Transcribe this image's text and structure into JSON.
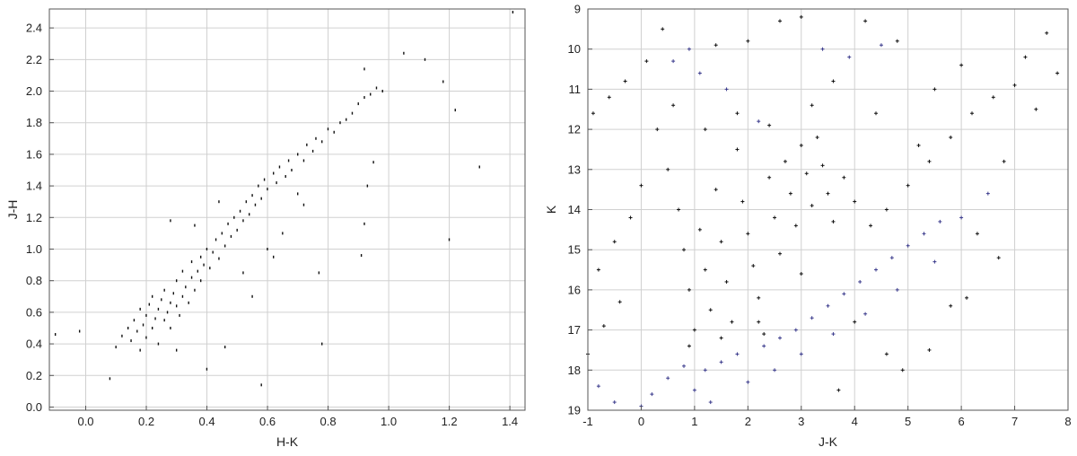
{
  "chart_data": [
    {
      "type": "scatter",
      "title": "",
      "xlabel": "H-K",
      "ylabel": "J-H",
      "xlim": [
        -0.12,
        1.45
      ],
      "ylim": [
        -0.02,
        2.52
      ],
      "xticks": [
        0.0,
        0.2,
        0.4,
        0.6,
        0.8,
        1.0,
        1.2,
        1.4
      ],
      "xtick_labels": [
        "0.0",
        "0.2",
        "0.4",
        "0.6",
        "0.8",
        "1.0",
        "1.2",
        "1.4"
      ],
      "yticks": [
        0.0,
        0.2,
        0.4,
        0.6,
        0.8,
        1.0,
        1.2,
        1.4,
        1.6,
        1.8,
        2.0,
        2.2,
        2.4
      ],
      "ytick_labels": [
        "0.0",
        "0.2",
        "0.4",
        "0.6",
        "0.8",
        "1.0",
        "1.2",
        "1.4",
        "1.6",
        "1.8",
        "2.0",
        "2.2",
        "2.4"
      ],
      "grid": true,
      "series": [
        {
          "marker": "dot",
          "color": "#111111",
          "points": [
            [
              0.1,
              0.38
            ],
            [
              0.12,
              0.45
            ],
            [
              0.14,
              0.5
            ],
            [
              0.15,
              0.42
            ],
            [
              0.16,
              0.55
            ],
            [
              0.17,
              0.48
            ],
            [
              0.18,
              0.62
            ],
            [
              0.18,
              0.36
            ],
            [
              0.19,
              0.52
            ],
            [
              0.2,
              0.58
            ],
            [
              0.2,
              0.44
            ],
            [
              0.21,
              0.65
            ],
            [
              0.22,
              0.5
            ],
            [
              0.22,
              0.7
            ],
            [
              0.23,
              0.56
            ],
            [
              0.24,
              0.62
            ],
            [
              0.24,
              0.4
            ],
            [
              0.25,
              0.68
            ],
            [
              0.26,
              0.55
            ],
            [
              0.26,
              0.74
            ],
            [
              0.27,
              0.6
            ],
            [
              0.28,
              0.66
            ],
            [
              0.28,
              0.5
            ],
            [
              0.29,
              0.72
            ],
            [
              0.3,
              0.64
            ],
            [
              0.3,
              0.8
            ],
            [
              0.31,
              0.58
            ],
            [
              0.32,
              0.7
            ],
            [
              0.32,
              0.86
            ],
            [
              0.33,
              0.76
            ],
            [
              0.34,
              0.66
            ],
            [
              0.35,
              0.82
            ],
            [
              0.35,
              0.92
            ],
            [
              0.36,
              0.74
            ],
            [
              0.37,
              0.86
            ],
            [
              0.38,
              0.95
            ],
            [
              0.38,
              0.8
            ],
            [
              0.39,
              0.9
            ],
            [
              0.4,
              1.0
            ],
            [
              0.41,
              0.88
            ],
            [
              0.42,
              0.98
            ],
            [
              0.43,
              1.06
            ],
            [
              0.44,
              0.94
            ],
            [
              0.45,
              1.1
            ],
            [
              0.46,
              1.02
            ],
            [
              0.47,
              1.16
            ],
            [
              0.48,
              1.08
            ],
            [
              0.49,
              1.2
            ],
            [
              0.5,
              1.12
            ],
            [
              0.51,
              1.24
            ],
            [
              0.52,
              1.18
            ],
            [
              0.53,
              1.3
            ],
            [
              0.54,
              1.22
            ],
            [
              0.55,
              1.34
            ],
            [
              0.56,
              1.28
            ],
            [
              0.57,
              1.4
            ],
            [
              0.58,
              1.32
            ],
            [
              0.59,
              1.44
            ],
            [
              0.6,
              1.38
            ],
            [
              0.62,
              1.48
            ],
            [
              0.63,
              1.42
            ],
            [
              0.64,
              1.52
            ],
            [
              0.66,
              1.46
            ],
            [
              0.67,
              1.56
            ],
            [
              0.68,
              1.5
            ],
            [
              0.7,
              1.6
            ],
            [
              0.72,
              1.56
            ],
            [
              0.73,
              1.66
            ],
            [
              0.75,
              1.62
            ],
            [
              0.76,
              1.7
            ],
            [
              0.78,
              1.68
            ],
            [
              0.8,
              1.76
            ],
            [
              0.82,
              1.74
            ],
            [
              0.84,
              1.8
            ],
            [
              0.86,
              1.82
            ],
            [
              0.88,
              1.86
            ],
            [
              0.9,
              1.92
            ],
            [
              0.92,
              1.96
            ],
            [
              0.94,
              1.98
            ],
            [
              0.96,
              2.02
            ],
            [
              0.98,
              2.0
            ],
            [
              1.05,
              2.24
            ],
            [
              1.12,
              2.2
            ],
            [
              1.18,
              2.06
            ],
            [
              1.22,
              1.88
            ],
            [
              1.3,
              1.52
            ],
            [
              1.41,
              2.5
            ],
            [
              0.92,
              2.14
            ],
            [
              0.95,
              1.55
            ],
            [
              0.93,
              1.4
            ],
            [
              0.92,
              1.16
            ],
            [
              1.2,
              1.06
            ],
            [
              0.91,
              0.96
            ],
            [
              0.77,
              0.85
            ],
            [
              0.78,
              0.4
            ],
            [
              0.58,
              0.14
            ],
            [
              0.4,
              0.24
            ],
            [
              0.3,
              0.36
            ],
            [
              0.46,
              0.38
            ],
            [
              0.08,
              0.18
            ],
            [
              -0.02,
              0.48
            ],
            [
              -0.1,
              0.46
            ],
            [
              0.55,
              0.7
            ],
            [
              0.62,
              0.95
            ],
            [
              0.7,
              1.35
            ],
            [
              0.44,
              1.3
            ],
            [
              0.36,
              1.15
            ],
            [
              0.28,
              1.18
            ],
            [
              0.65,
              1.1
            ],
            [
              0.72,
              1.28
            ],
            [
              0.6,
              1.0
            ],
            [
              0.52,
              0.85
            ]
          ]
        }
      ]
    },
    {
      "type": "scatter",
      "title": "",
      "xlabel": "J-K",
      "ylabel": "K",
      "xlim": [
        -1,
        8
      ],
      "ylim": [
        19,
        9
      ],
      "y_inverted": true,
      "xticks": [
        -1,
        0,
        1,
        2,
        3,
        4,
        5,
        6,
        7,
        8
      ],
      "xtick_labels": [
        "-1",
        "0",
        "1",
        "2",
        "3",
        "4",
        "5",
        "6",
        "7",
        "8"
      ],
      "yticks": [
        9,
        10,
        11,
        12,
        13,
        14,
        15,
        16,
        17,
        18,
        19
      ],
      "ytick_labels": [
        "9",
        "10",
        "11",
        "12",
        "13",
        "14",
        "15",
        "16",
        "17",
        "18",
        "19"
      ],
      "grid": true,
      "series": [
        {
          "marker": "plus",
          "color": "#3a3a8c",
          "points": [
            [
              0.2,
              18.6
            ],
            [
              0.5,
              18.2
            ],
            [
              0.8,
              17.9
            ],
            [
              1.0,
              18.5
            ],
            [
              1.2,
              18.0
            ],
            [
              1.5,
              17.8
            ],
            [
              1.8,
              17.6
            ],
            [
              2.0,
              18.3
            ],
            [
              2.3,
              17.4
            ],
            [
              2.6,
              17.2
            ],
            [
              2.9,
              17.0
            ],
            [
              3.2,
              16.7
            ],
            [
              3.5,
              16.4
            ],
            [
              3.8,
              16.1
            ],
            [
              4.1,
              15.8
            ],
            [
              4.4,
              15.5
            ],
            [
              4.7,
              15.2
            ],
            [
              5.0,
              14.9
            ],
            [
              5.3,
              14.6
            ],
            [
              5.6,
              14.3
            ],
            [
              0.0,
              18.9
            ],
            [
              -0.5,
              18.8
            ],
            [
              -0.8,
              18.4
            ],
            [
              1.3,
              18.8
            ],
            [
              2.5,
              18.0
            ],
            [
              3.0,
              17.6
            ],
            [
              3.6,
              17.1
            ],
            [
              4.2,
              16.6
            ],
            [
              4.8,
              16.0
            ],
            [
              5.5,
              15.3
            ],
            [
              6.0,
              14.2
            ],
            [
              6.5,
              13.6
            ],
            [
              0.6,
              10.3
            ],
            [
              0.9,
              10.0
            ],
            [
              1.1,
              10.6
            ],
            [
              1.6,
              11.0
            ],
            [
              2.2,
              11.8
            ],
            [
              3.4,
              10.0
            ],
            [
              3.9,
              10.2
            ],
            [
              4.5,
              9.9
            ]
          ]
        },
        {
          "marker": "plus",
          "color": "#111111",
          "points": [
            [
              0.5,
              13.0
            ],
            [
              0.7,
              14.0
            ],
            [
              0.8,
              15.0
            ],
            [
              0.9,
              16.0
            ],
            [
              1.0,
              17.0
            ],
            [
              1.1,
              14.5
            ],
            [
              1.2,
              15.5
            ],
            [
              1.3,
              16.5
            ],
            [
              1.4,
              13.5
            ],
            [
              1.5,
              14.8
            ],
            [
              1.6,
              15.8
            ],
            [
              1.7,
              16.8
            ],
            [
              1.8,
              12.5
            ],
            [
              1.9,
              13.8
            ],
            [
              2.0,
              14.6
            ],
            [
              2.1,
              15.4
            ],
            [
              2.2,
              16.2
            ],
            [
              2.3,
              17.1
            ],
            [
              2.4,
              13.2
            ],
            [
              2.5,
              14.2
            ],
            [
              2.6,
              15.1
            ],
            [
              2.7,
              12.8
            ],
            [
              2.8,
              13.6
            ],
            [
              2.9,
              14.4
            ],
            [
              3.0,
              12.4
            ],
            [
              3.1,
              13.1
            ],
            [
              3.2,
              13.9
            ],
            [
              3.3,
              12.2
            ],
            [
              3.4,
              12.9
            ],
            [
              3.5,
              13.6
            ],
            [
              3.6,
              14.3
            ],
            [
              3.8,
              13.2
            ],
            [
              4.0,
              13.8
            ],
            [
              4.3,
              14.4
            ],
            [
              4.6,
              14.0
            ],
            [
              5.0,
              13.4
            ],
            [
              5.4,
              12.8
            ],
            [
              5.8,
              12.2
            ],
            [
              6.2,
              11.6
            ],
            [
              6.6,
              11.2
            ],
            [
              7.0,
              10.9
            ],
            [
              7.4,
              11.5
            ],
            [
              7.6,
              9.6
            ],
            [
              7.8,
              10.6
            ],
            [
              7.2,
              10.2
            ],
            [
              6.8,
              12.8
            ],
            [
              6.0,
              10.4
            ],
            [
              5.5,
              11.0
            ],
            [
              4.8,
              9.8
            ],
            [
              4.2,
              9.3
            ],
            [
              3.0,
              9.2
            ],
            [
              2.6,
              9.3
            ],
            [
              2.0,
              9.8
            ],
            [
              1.4,
              9.9
            ],
            [
              0.4,
              9.5
            ],
            [
              0.1,
              10.3
            ],
            [
              -0.3,
              10.8
            ],
            [
              -0.6,
              11.2
            ],
            [
              -0.9,
              11.6
            ],
            [
              0.3,
              12.0
            ],
            [
              0.0,
              13.4
            ],
            [
              -0.2,
              14.2
            ],
            [
              -0.5,
              14.8
            ],
            [
              -0.8,
              15.5
            ],
            [
              -0.4,
              16.3
            ],
            [
              -0.7,
              16.9
            ],
            [
              -1.0,
              17.6
            ],
            [
              0.6,
              11.4
            ],
            [
              1.2,
              12.0
            ],
            [
              1.8,
              11.6
            ],
            [
              2.4,
              11.9
            ],
            [
              3.2,
              11.4
            ],
            [
              3.6,
              10.8
            ],
            [
              4.4,
              11.6
            ],
            [
              5.2,
              12.4
            ],
            [
              6.1,
              16.2
            ],
            [
              6.7,
              15.2
            ],
            [
              5.4,
              17.5
            ],
            [
              4.9,
              18.0
            ],
            [
              3.7,
              18.5
            ],
            [
              4.6,
              17.6
            ],
            [
              5.8,
              16.4
            ],
            [
              6.3,
              14.6
            ],
            [
              4.0,
              16.8
            ],
            [
              3.0,
              15.6
            ],
            [
              2.2,
              16.8
            ],
            [
              1.5,
              17.2
            ],
            [
              0.9,
              17.4
            ]
          ]
        }
      ]
    }
  ]
}
